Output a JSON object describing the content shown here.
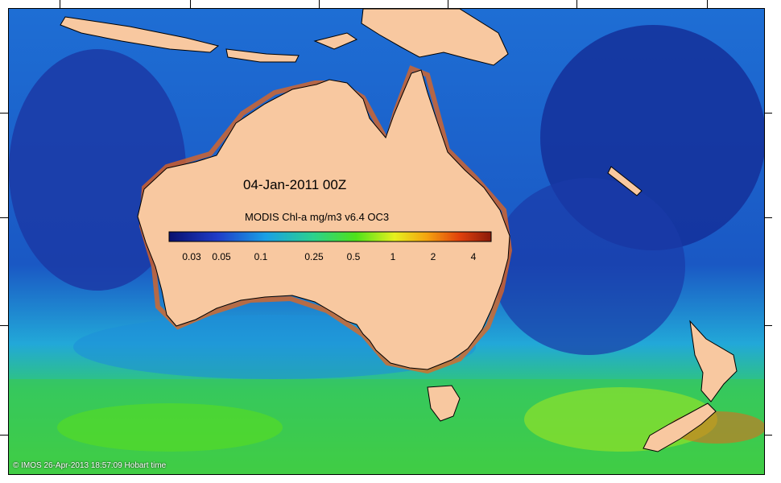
{
  "title": "04-Jan-2011 00Z",
  "colorbar": {
    "title": "MODIS Chl-a mg/m3 v6.4 OC3",
    "labels": [
      "0.03",
      "0.05",
      "0.1",
      "0.25",
      "0.5",
      "1",
      "2",
      "4"
    ],
    "colors": [
      "#08106e",
      "#1f3cc8",
      "#1aa0e6",
      "#2bd28c",
      "#4ee21a",
      "#e6f01e",
      "#f5a30f",
      "#e2420c",
      "#8a1a0a"
    ]
  },
  "colors": {
    "land": "#f8c8a0",
    "deep_ocean": "#1a3aa8",
    "mid_ocean": "#1e78d8",
    "light_ocean": "#24b4e0",
    "productive": "#30c872",
    "bloom": "#58de20",
    "coastal_high": "#e8661a"
  },
  "copyright": "© IMOS 26-Apr-2013 18:57:09 Hobart time"
}
